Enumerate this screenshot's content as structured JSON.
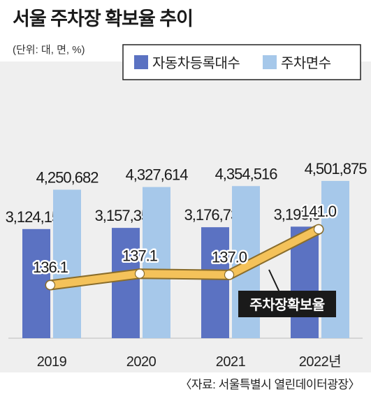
{
  "title": "서울 주차장 확보율 추이",
  "unit_note": "(단위: 대, 면, %)",
  "source": "〈자료: 서울특별시 열린데이터광장〉",
  "colors": {
    "registered_vehicles": "#5b72c2",
    "parking_spaces": "#a6c8ea",
    "ratio_line": "#f4c25a",
    "ratio_line_stroke": "#8a6d2b",
    "callout_bg": "#1a1a1a",
    "panel_bg": "#efefef"
  },
  "chart_data": {
    "type": "bar",
    "categories": [
      "2019",
      "2020",
      "2021",
      "2022년"
    ],
    "series": [
      {
        "name": "자동차등록대수",
        "values": [
          3124157,
          3157353,
          3176736,
          3193349
        ],
        "labels": [
          "3,124,157",
          "3,157,353",
          "3,176,736",
          "3,193,349"
        ]
      },
      {
        "name": "주차면수",
        "values": [
          4250682,
          4327614,
          4354516,
          4501875
        ],
        "labels": [
          "4,250,682",
          "4,327,614",
          "4,354,516",
          "4,501,875"
        ]
      }
    ],
    "line_series": {
      "name": "주차장확보율",
      "values": [
        136.1,
        137.1,
        137.0,
        141.0
      ],
      "labels": [
        "136.1",
        "137.1",
        "137.0",
        "141.0"
      ]
    },
    "legend": [
      "자동차등록대수",
      "주차면수"
    ],
    "legend_position": "top-right",
    "grid": false
  }
}
